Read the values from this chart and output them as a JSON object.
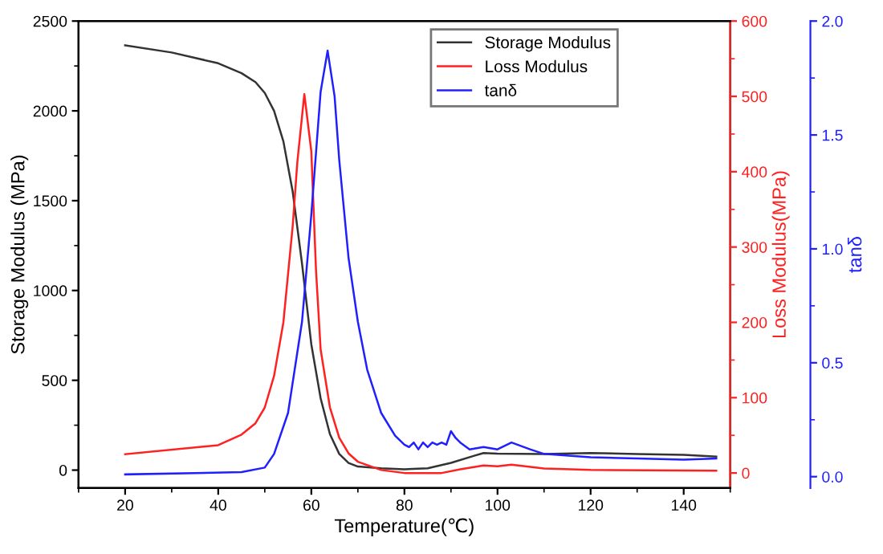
{
  "chart_data": {
    "type": "line",
    "xlabel": "Temperature(℃)",
    "ylabel": "Storage Modulus (MPa)",
    "y2label": "Loss Modulus(MPa)",
    "y3label": "tanδ",
    "xlim": [
      10,
      150
    ],
    "xticks": [
      20,
      40,
      60,
      80,
      100,
      120,
      140
    ],
    "ylim": [
      -100,
      2500
    ],
    "yticks": [
      0,
      500,
      1000,
      1500,
      2000,
      2500
    ],
    "y2lim": [
      -20,
      600
    ],
    "y2ticks": [
      0,
      100,
      200,
      300,
      400,
      500,
      600
    ],
    "y3lim": [
      -0.05,
      2.0
    ],
    "y3ticks": [
      {
        "value": 0,
        "label": "0.0"
      },
      {
        "value": 0.5,
        "label": "0.5"
      },
      {
        "value": 1,
        "label": "1.0"
      },
      {
        "value": 1.5,
        "label": "1.5"
      },
      {
        "value": 2,
        "label": "2.0"
      }
    ],
    "legend": "top right",
    "grid": false,
    "marker": "none",
    "line_style": "solid",
    "series": [
      {
        "name": "Storage Modulus",
        "color": "#333333",
        "x": [
          20,
          30,
          40,
          45,
          48,
          50,
          52,
          54,
          56,
          58,
          60,
          62,
          64,
          66,
          68,
          70,
          75,
          80,
          85,
          90,
          95,
          97,
          100,
          110,
          120,
          130,
          140,
          147
        ],
        "values": [
          2365,
          2325,
          2265,
          2210,
          2160,
          2100,
          2000,
          1830,
          1550,
          1150,
          700,
          400,
          200,
          90,
          40,
          20,
          10,
          5,
          10,
          40,
          80,
          95,
          92,
          90,
          95,
          90,
          85,
          75
        ]
      },
      {
        "name": "Loss Modulus",
        "color": "#ff2020",
        "axis": "y2",
        "x": [
          20,
          40,
          45,
          48,
          50,
          52,
          54,
          56,
          57,
          58.5,
          60,
          61,
          62,
          64,
          66,
          68,
          70,
          75,
          80,
          88,
          92,
          97,
          100,
          103,
          110,
          120,
          147
        ],
        "values": [
          25,
          37,
          51,
          66,
          87,
          129,
          200,
          328,
          413,
          503,
          427,
          270,
          164,
          87,
          47,
          26,
          15,
          4,
          0,
          0,
          5,
          10,
          9,
          11,
          6,
          4,
          3
        ]
      },
      {
        "name": "tanδ",
        "color": "#2020ff",
        "axis": "y3",
        "x": [
          20,
          45,
          50,
          52,
          55,
          58,
          60,
          62,
          63.5,
          65,
          66,
          68,
          70,
          72,
          75,
          78,
          80,
          81,
          82,
          83,
          84,
          85,
          86,
          87,
          88,
          89,
          90,
          91,
          92,
          94,
          97,
          100,
          103,
          107,
          110,
          120,
          130,
          140,
          147
        ],
        "values": [
          0.01,
          0.02,
          0.04,
          0.1,
          0.28,
          0.68,
          1.15,
          1.69,
          1.87,
          1.67,
          1.39,
          0.96,
          0.68,
          0.47,
          0.28,
          0.18,
          0.14,
          0.13,
          0.15,
          0.12,
          0.15,
          0.13,
          0.15,
          0.14,
          0.15,
          0.14,
          0.2,
          0.17,
          0.15,
          0.12,
          0.13,
          0.12,
          0.15,
          0.12,
          0.1,
          0.085,
          0.08,
          0.075,
          0.08
        ]
      }
    ]
  }
}
